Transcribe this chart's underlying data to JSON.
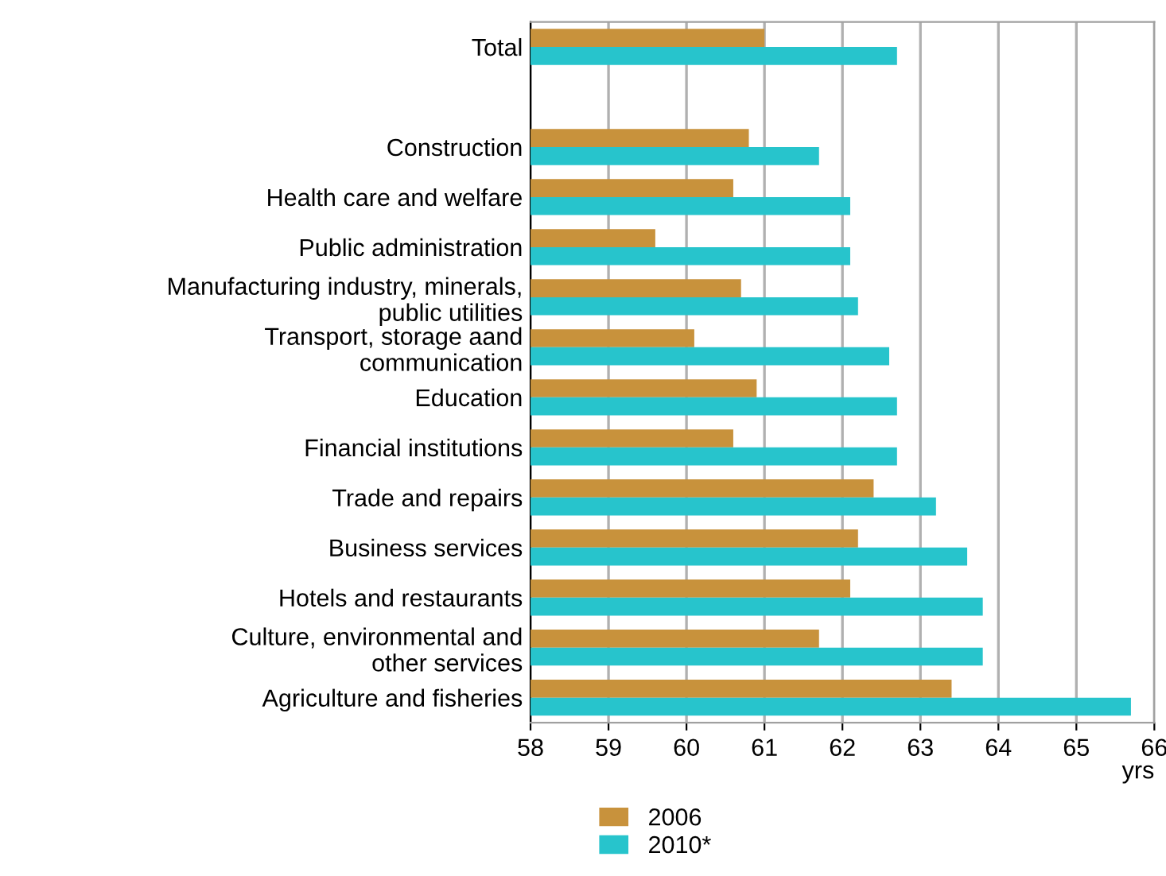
{
  "chart_data": {
    "type": "bar",
    "orientation": "horizontal",
    "xlabel": "yrs",
    "categories": [
      "Total",
      null,
      "Construction",
      "Health care and welfare",
      "Public administration",
      "Manufacturing industry, minerals,\npublic utilities",
      "Transport, storage aand\ncommunication",
      "Education",
      "Financial institutions",
      "Trade and repairs",
      "Business services",
      "Hotels and restaurants",
      "Culture, environmental and\nother services",
      "Agriculture and fisheries"
    ],
    "series": [
      {
        "name": "2006",
        "color": "#c8923c",
        "values": [
          61.0,
          null,
          60.8,
          60.6,
          59.6,
          60.7,
          60.1,
          60.9,
          60.6,
          62.4,
          62.2,
          62.1,
          61.7,
          63.4
        ]
      },
      {
        "name": "2010*",
        "color": "#27c4cc",
        "values": [
          62.7,
          null,
          61.7,
          62.1,
          62.1,
          62.2,
          62.6,
          62.7,
          62.7,
          63.2,
          63.6,
          63.8,
          63.8,
          65.7
        ]
      }
    ],
    "xlim": [
      58,
      66
    ],
    "xticks": [
      58,
      59,
      60,
      61,
      62,
      63,
      64,
      65,
      66
    ],
    "grid": "x",
    "legend": "bottom"
  }
}
